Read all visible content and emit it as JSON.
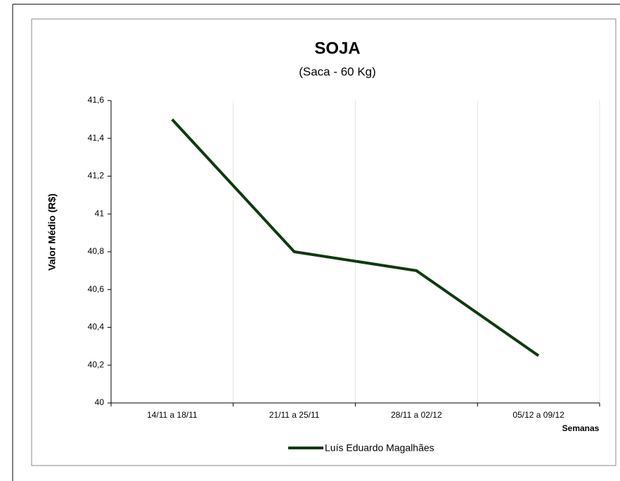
{
  "chart_data": {
    "type": "line",
    "title": "SOJA",
    "subtitle": "(Saca - 60 Kg)",
    "x_label": "Semanas",
    "y_label": "Valor Médio (R$)",
    "categories": [
      "14/11 a 18/11",
      "21/11 a 25/11",
      "28/11 a 02/12",
      "05/12 a 09/12"
    ],
    "series": [
      {
        "name": "Luís Eduardo Magalhães",
        "color": "#0d3b0d",
        "values": [
          41.5,
          40.8,
          40.7,
          40.25
        ]
      }
    ],
    "ylim": [
      40,
      41.6
    ],
    "yticks": [
      40,
      {
        "value": 40.2,
        "label": "40,2"
      },
      {
        "value": 40.4,
        "label": "40,4"
      },
      {
        "value": 40.6,
        "label": "40,6"
      },
      {
        "value": 40.8,
        "label": "40,8"
      },
      41,
      {
        "value": 41.2,
        "label": "41,2"
      },
      {
        "value": 41.4,
        "label": "41,4"
      },
      {
        "value": 41.6,
        "label": "41,6"
      }
    ],
    "grid": true,
    "legend": "bottom"
  }
}
